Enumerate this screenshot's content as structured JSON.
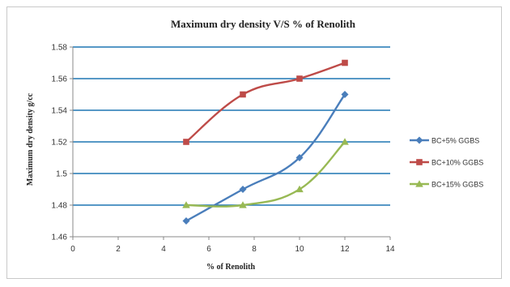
{
  "chart_data": {
    "type": "line",
    "title": "Maximum dry density V/S  % of Renolith",
    "xlabel": "% of Renolith",
    "ylabel": "Maximum dry density  g/cc",
    "xlim": [
      0,
      14
    ],
    "ylim": [
      1.46,
      1.58
    ],
    "x_ticks": [
      "0",
      "2",
      "4",
      "6",
      "8",
      "10",
      "12",
      "14"
    ],
    "y_ticks": [
      "1.46",
      "1.48",
      "1.5",
      "1.52",
      "1.54",
      "1.56",
      "1.58"
    ],
    "grid": "horizontal",
    "legend_position": "right",
    "series": [
      {
        "name": "BC+5% GGBS",
        "color": "#4a7ebb",
        "marker": "diamond",
        "x": [
          5,
          7.5,
          10,
          12
        ],
        "y": [
          1.47,
          1.49,
          1.51,
          1.55
        ]
      },
      {
        "name": "BC+10% GGBS",
        "color": "#be4b48",
        "marker": "square",
        "x": [
          5,
          7.5,
          10,
          12
        ],
        "y": [
          1.52,
          1.55,
          1.56,
          1.57
        ]
      },
      {
        "name": "BC+15% GGBS",
        "color": "#98b954",
        "marker": "triangle",
        "x": [
          5,
          7.5,
          10,
          12
        ],
        "y": [
          1.48,
          1.48,
          1.49,
          1.52
        ]
      }
    ]
  }
}
